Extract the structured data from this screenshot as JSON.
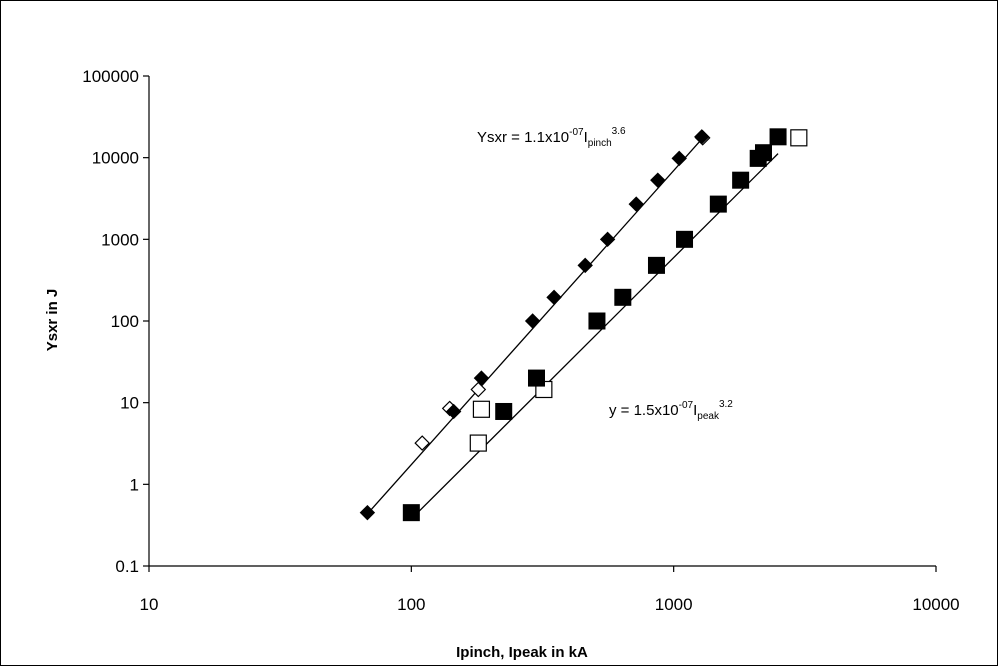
{
  "chart_data": {
    "type": "scatter",
    "title": "",
    "xlabel": "Ipinch, Ipeak in kA",
    "ylabel": "Ysxr in J",
    "xscale": "log",
    "yscale": "log",
    "xlim": [
      10,
      10000
    ],
    "ylim": [
      0.1,
      100000
    ],
    "x_ticks": [
      "10",
      "100",
      "1000",
      "10000"
    ],
    "y_ticks": [
      "0.1",
      "1",
      "10",
      "100",
      "1000",
      "10000",
      "100000"
    ],
    "grid": false,
    "legend": "none",
    "series": [
      {
        "marker": "filled-diamond",
        "color": "#000000",
        "points": [
          [
            68,
            0.45
          ],
          [
            145,
            7.8
          ],
          [
            185,
            20
          ],
          [
            290,
            100
          ],
          [
            350,
            195
          ],
          [
            460,
            480
          ],
          [
            560,
            1000
          ],
          [
            720,
            2700
          ],
          [
            870,
            5300
          ],
          [
            1050,
            9800
          ],
          [
            1280,
            18000
          ]
        ]
      },
      {
        "marker": "open-diamond",
        "color": "#000000",
        "points": [
          [
            110,
            3.2
          ],
          [
            140,
            8.5
          ],
          [
            180,
            14.5
          ],
          [
            1290,
            17500
          ]
        ]
      },
      {
        "marker": "filled-square",
        "color": "#000000",
        "points": [
          [
            100,
            0.45
          ],
          [
            225,
            7.8
          ],
          [
            300,
            20
          ],
          [
            510,
            100
          ],
          [
            640,
            195
          ],
          [
            860,
            480
          ],
          [
            1100,
            1000
          ],
          [
            1480,
            2700
          ],
          [
            1800,
            5300
          ],
          [
            2100,
            9800
          ],
          [
            2200,
            11500
          ],
          [
            2500,
            18000
          ]
        ]
      },
      {
        "marker": "open-square",
        "color": "#000000",
        "points": [
          [
            180,
            3.2
          ],
          [
            185,
            8.3
          ],
          [
            320,
            14.5
          ],
          [
            3000,
            17500
          ]
        ]
      }
    ],
    "fits": [
      {
        "coefficient": 1.1e-07,
        "exponent": 3.6,
        "label": {
          "prefix": "Ysxr = 1.1x10",
          "coef_exp": "-07",
          "var": "I",
          "var_sub": "pinch",
          "power": "3.6"
        }
      },
      {
        "coefficient": 1.5e-07,
        "exponent": 3.2,
        "label": {
          "prefix": "y = 1.5x10",
          "coef_exp": "-07",
          "var": "I",
          "var_sub": "peak",
          "power": "3.2"
        }
      }
    ]
  }
}
